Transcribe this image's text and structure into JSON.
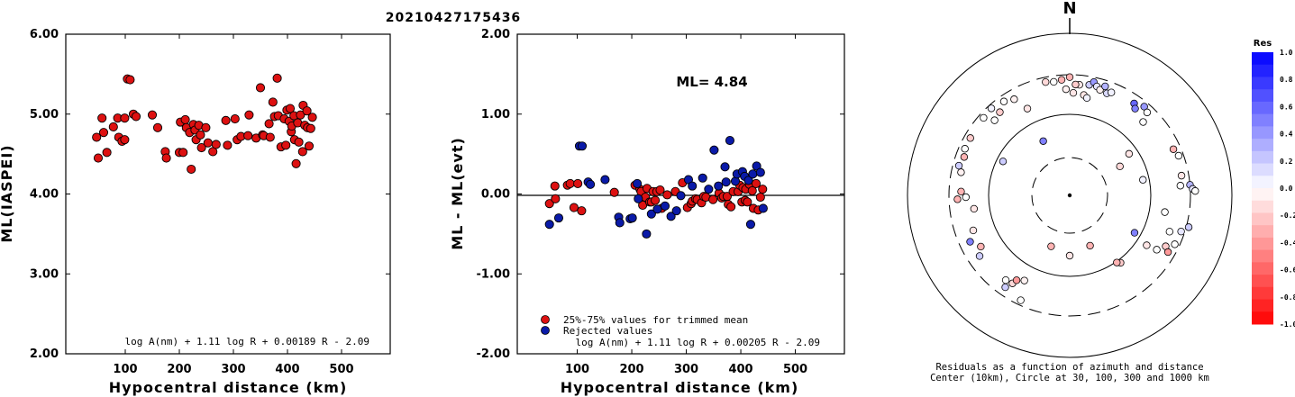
{
  "event_id": "20210427175436",
  "chart_data": [
    {
      "type": "scatter",
      "ylabel": "ML(IASPEI)",
      "xlabel": "Hypocentral distance (km)",
      "xlim": [
        -10,
        590
      ],
      "ylim": [
        2.0,
        6.0
      ],
      "xticks": [
        "100",
        "200",
        "300",
        "400",
        "500"
      ],
      "yticks": [
        "2.00",
        "3.00",
        "4.00",
        "5.00",
        "6.00"
      ],
      "formula": "log A(nm) + 1.11 log R + 0.00189 R - 2.09",
      "marker_color": "#dd1111",
      "series": [
        {
          "values": [
            [
              47,
              4.71
            ],
            [
              50,
              4.45
            ],
            [
              57,
              4.95
            ],
            [
              60,
              4.77
            ],
            [
              66,
              4.52
            ],
            [
              78,
              4.84
            ],
            [
              86,
              4.95
            ],
            [
              88,
              4.71
            ],
            [
              94,
              4.66
            ],
            [
              99,
              4.95
            ],
            [
              99,
              4.68
            ],
            [
              104,
              5.44
            ],
            [
              109,
              5.43
            ],
            [
              115,
              5.0
            ],
            [
              120,
              4.97
            ],
            [
              150,
              4.99
            ],
            [
              160,
              4.83
            ],
            [
              174,
              4.53
            ],
            [
              176,
              4.45
            ],
            [
              200,
              4.52
            ],
            [
              202,
              4.9
            ],
            [
              207,
              4.52
            ],
            [
              211,
              4.93
            ],
            [
              213,
              4.83
            ],
            [
              219,
              4.77
            ],
            [
              222,
              4.31
            ],
            [
              226,
              4.87
            ],
            [
              229,
              4.8
            ],
            [
              231,
              4.68
            ],
            [
              236,
              4.86
            ],
            [
              239,
              4.74
            ],
            [
              241,
              4.58
            ],
            [
              249,
              4.83
            ],
            [
              253,
              4.64
            ],
            [
              262,
              4.53
            ],
            [
              268,
              4.62
            ],
            [
              286,
              4.92
            ],
            [
              289,
              4.61
            ],
            [
              303,
              4.94
            ],
            [
              307,
              4.68
            ],
            [
              314,
              4.72
            ],
            [
              327,
              4.73
            ],
            [
              329,
              4.99
            ],
            [
              342,
              4.7
            ],
            [
              350,
              5.33
            ],
            [
              354,
              4.74
            ],
            [
              356,
              4.73
            ],
            [
              366,
              4.88
            ],
            [
              368,
              4.71
            ],
            [
              373,
              5.15
            ],
            [
              376,
              4.97
            ],
            [
              381,
              5.45
            ],
            [
              383,
              4.98
            ],
            [
              388,
              4.59
            ],
            [
              394,
              4.94
            ],
            [
              397,
              4.61
            ],
            [
              399,
              5.05
            ],
            [
              403,
              4.91
            ],
            [
              405,
              5.07
            ],
            [
              407,
              4.78
            ],
            [
              408,
              4.85
            ],
            [
              412,
              4.98
            ],
            [
              413,
              4.68
            ],
            [
              416,
              4.38
            ],
            [
              419,
              4.89
            ],
            [
              421,
              4.65
            ],
            [
              424,
              4.99
            ],
            [
              428,
              4.53
            ],
            [
              429,
              5.11
            ],
            [
              432,
              4.86
            ],
            [
              436,
              5.04
            ],
            [
              437,
              4.83
            ],
            [
              440,
              4.6
            ],
            [
              443,
              4.82
            ],
            [
              446,
              4.96
            ]
          ]
        }
      ]
    },
    {
      "type": "scatter",
      "ylabel": "ML - ML(evt)",
      "xlabel": "Hypocentral distance (km)",
      "xlim": [
        -10,
        590
      ],
      "ylim": [
        -2.0,
        2.0
      ],
      "xticks": [
        "100",
        "200",
        "300",
        "400",
        "500"
      ],
      "yticks": [
        "-2.00",
        "-1.00",
        "0.00",
        "1.00",
        "2.00"
      ],
      "annotation": "ML= 4.84",
      "formula": "log A(nm) + 1.11 log R + 0.00205 R - 2.09",
      "legend": [
        "25%-75% values for trimmed mean",
        "Rejected values"
      ],
      "series": [
        {
          "name": "25%-75% values for trimmed mean",
          "color": "#dd1111",
          "values": [
            [
              49,
              -0.12
            ],
            [
              59,
              0.1
            ],
            [
              60,
              -0.06
            ],
            [
              82,
              0.11
            ],
            [
              87,
              0.13
            ],
            [
              94,
              -0.17
            ],
            [
              101,
              0.13
            ],
            [
              108,
              -0.21
            ],
            [
              168,
              0.02
            ],
            [
              206,
              0.11
            ],
            [
              215,
              0.06
            ],
            [
              217,
              0.03
            ],
            [
              220,
              -0.14
            ],
            [
              225,
              -0.04
            ],
            [
              228,
              0.07
            ],
            [
              233,
              -0.1
            ],
            [
              236,
              -0.1
            ],
            [
              239,
              0.03
            ],
            [
              243,
              -0.08
            ],
            [
              246,
              0.03
            ],
            [
              252,
              0.05
            ],
            [
              255,
              -0.18
            ],
            [
              265,
              -0.01
            ],
            [
              280,
              0.03
            ],
            [
              293,
              0.14
            ],
            [
              302,
              -0.17
            ],
            [
              309,
              -0.12
            ],
            [
              311,
              -0.09
            ],
            [
              317,
              -0.06
            ],
            [
              320,
              -0.07
            ],
            [
              328,
              -0.11
            ],
            [
              332,
              -0.03
            ],
            [
              336,
              -0.04
            ],
            [
              349,
              -0.07
            ],
            [
              360,
              0.01
            ],
            [
              365,
              -0.05
            ],
            [
              368,
              -0.03
            ],
            [
              375,
              -0.03
            ],
            [
              377,
              -0.13
            ],
            [
              382,
              -0.16
            ],
            [
              386,
              0.03
            ],
            [
              395,
              0.03
            ],
            [
              398,
              0.11
            ],
            [
              402,
              -0.1
            ],
            [
              404,
              0.08
            ],
            [
              408,
              -0.08
            ],
            [
              409,
              0.06
            ],
            [
              412,
              -0.1
            ],
            [
              416,
              0.12
            ],
            [
              421,
              0.04
            ],
            [
              423,
              -0.18
            ],
            [
              428,
              0.13
            ],
            [
              432,
              -0.2
            ],
            [
              436,
              -0.04
            ],
            [
              440,
              0.06
            ]
          ]
        },
        {
          "name": "Rejected values",
          "color": "#0a1aa8",
          "values": [
            [
              49,
              -0.38
            ],
            [
              66,
              -0.3
            ],
            [
              104,
              0.6
            ],
            [
              109,
              0.6
            ],
            [
              120,
              0.15
            ],
            [
              124,
              0.12
            ],
            [
              151,
              0.18
            ],
            [
              176,
              -0.29
            ],
            [
              178,
              -0.36
            ],
            [
              197,
              -0.31
            ],
            [
              201,
              -0.3
            ],
            [
              210,
              0.13
            ],
            [
              212,
              -0.06
            ],
            [
              227,
              -0.5
            ],
            [
              236,
              -0.25
            ],
            [
              247,
              -0.19
            ],
            [
              261,
              -0.15
            ],
            [
              272,
              -0.28
            ],
            [
              282,
              -0.21
            ],
            [
              290,
              -0.02
            ],
            [
              304,
              0.18
            ],
            [
              311,
              0.1
            ],
            [
              330,
              0.2
            ],
            [
              341,
              0.06
            ],
            [
              351,
              0.55
            ],
            [
              359,
              0.1
            ],
            [
              371,
              0.34
            ],
            [
              373,
              0.15
            ],
            [
              380,
              0.67
            ],
            [
              390,
              0.16
            ],
            [
              393,
              0.25
            ],
            [
              403,
              0.28
            ],
            [
              407,
              0.22
            ],
            [
              414,
              0.17
            ],
            [
              418,
              -0.38
            ],
            [
              422,
              0.25
            ],
            [
              429,
              0.35
            ],
            [
              436,
              0.27
            ],
            [
              441,
              -0.18
            ]
          ]
        }
      ]
    },
    {
      "type": "polar-scatter",
      "north_label": "N",
      "caption_line1": "Residuals as a function of azimuth and distance",
      "caption_line2": "Center (10km), Circle at 30, 100, 300 and 1000 km",
      "colorbar_title": "Res",
      "colorbar_ticks": [
        "1.0",
        "0.8",
        "0.6",
        "0.4",
        "0.2",
        "0.0",
        "-0.2",
        "-0.4",
        "-0.6",
        "-0.8",
        "-1.0"
      ],
      "positive_color": "#0000ff",
      "negative_color": "#ff0000",
      "points": [
        {
          "az": 5,
          "r": 0.92,
          "res": -0.1
        },
        {
          "az": 10,
          "r": 0.93,
          "res": 0.2
        },
        {
          "az": 12,
          "r": 0.96,
          "res": 0.4
        },
        {
          "az": 14,
          "r": 0.93,
          "res": 0.1
        },
        {
          "az": 16,
          "r": 0.91,
          "res": -0.05
        },
        {
          "az": 18,
          "r": 0.95,
          "res": 0.3
        },
        {
          "az": 20,
          "r": 0.9,
          "res": 0.15
        },
        {
          "az": 22,
          "r": 0.92,
          "res": 0.05
        },
        {
          "az": 8,
          "r": 0.84,
          "res": -0.1
        },
        {
          "az": 10,
          "r": 0.82,
          "res": 0.05
        },
        {
          "az": 35,
          "r": 0.93,
          "res": 0.6
        },
        {
          "az": 37,
          "r": 0.9,
          "res": 0.5
        },
        {
          "az": 40,
          "r": 0.96,
          "res": 0.4
        },
        {
          "az": 43,
          "r": 0.94,
          "res": 0.0
        },
        {
          "az": 45,
          "r": 0.86,
          "res": 0.0
        },
        {
          "az": 55,
          "r": 0.6,
          "res": -0.1
        },
        {
          "az": 60,
          "r": 0.48,
          "res": -0.15
        },
        {
          "az": 66,
          "r": 0.94,
          "res": -0.3
        },
        {
          "az": 70,
          "r": 0.96,
          "res": 0.0
        },
        {
          "az": 80,
          "r": 0.94,
          "res": -0.1
        },
        {
          "az": 85,
          "r": 0.92,
          "res": 0.0
        },
        {
          "az": 85,
          "r": 1.0,
          "res": 0.3
        },
        {
          "az": 87,
          "r": 1.02,
          "res": 0.1
        },
        {
          "az": 88,
          "r": 1.04,
          "res": 0.0
        },
        {
          "az": 78,
          "r": 0.62,
          "res": 0.05
        },
        {
          "az": 100,
          "r": 0.8,
          "res": 0.0
        },
        {
          "az": 105,
          "r": 1.02,
          "res": 0.2
        },
        {
          "az": 108,
          "r": 0.97,
          "res": 0.1
        },
        {
          "az": 110,
          "r": 0.88,
          "res": 0.0
        },
        {
          "az": 115,
          "r": 0.96,
          "res": 0.0
        },
        {
          "az": 118,
          "r": 0.9,
          "res": -0.2
        },
        {
          "az": 120,
          "r": 0.94,
          "res": -0.4
        },
        {
          "az": 122,
          "r": 0.85,
          "res": 0.0
        },
        {
          "az": 123,
          "r": 0.76,
          "res": -0.1
        },
        {
          "az": 120,
          "r": 0.62,
          "res": 0.5
        },
        {
          "az": 143,
          "r": 0.7,
          "res": -0.2
        },
        {
          "az": 145,
          "r": 0.68,
          "res": -0.3
        },
        {
          "az": 158,
          "r": 0.45,
          "res": -0.3
        },
        {
          "az": 180,
          "r": 0.5,
          "res": -0.1
        },
        {
          "az": 200,
          "r": 0.45,
          "res": -0.3
        },
        {
          "az": 208,
          "r": 0.8,
          "res": -0.05
        },
        {
          "az": 205,
          "r": 0.96,
          "res": 0.0
        },
        {
          "az": 215,
          "r": 0.93,
          "res": 0.2
        },
        {
          "az": 213,
          "r": 0.87,
          "res": -0.15
        },
        {
          "az": 212,
          "r": 0.83,
          "res": -0.4
        },
        {
          "az": 217,
          "r": 0.88,
          "res": 0.0
        },
        {
          "az": 236,
          "r": 0.9,
          "res": 0.2
        },
        {
          "az": 240,
          "r": 0.85,
          "res": -0.3
        },
        {
          "az": 245,
          "r": 0.91,
          "res": 0.5
        },
        {
          "az": 250,
          "r": 0.85,
          "res": -0.1
        },
        {
          "az": 262,
          "r": 0.8,
          "res": -0.1
        },
        {
          "az": 268,
          "r": 0.93,
          "res": -0.3
        },
        {
          "az": 272,
          "r": 0.9,
          "res": -0.3
        },
        {
          "az": 269,
          "r": 0.86,
          "res": 0.0
        },
        {
          "az": 282,
          "r": 0.92,
          "res": -0.05
        },
        {
          "az": 285,
          "r": 0.95,
          "res": 0.2
        },
        {
          "az": 290,
          "r": 0.93,
          "res": -0.3
        },
        {
          "az": 294,
          "r": 0.95,
          "res": 0.0
        },
        {
          "az": 300,
          "r": 0.95,
          "res": -0.2
        },
        {
          "az": 297,
          "r": 0.62,
          "res": 0.2
        },
        {
          "az": 312,
          "r": 0.96,
          "res": 0.0
        },
        {
          "az": 318,
          "r": 0.97,
          "res": 0.05
        },
        {
          "az": 320,
          "r": 0.9,
          "res": -0.2
        },
        {
          "az": 315,
          "r": 0.88,
          "res": 0.0
        },
        {
          "az": 325,
          "r": 0.95,
          "res": 0.0
        },
        {
          "az": 330,
          "r": 0.92,
          "res": -0.05
        },
        {
          "az": 334,
          "r": 0.8,
          "res": -0.1
        },
        {
          "az": 334,
          "r": 0.5,
          "res": 0.5
        },
        {
          "az": 348,
          "r": 0.96,
          "res": -0.15
        },
        {
          "az": 352,
          "r": 0.95,
          "res": 0.0
        },
        {
          "az": 356,
          "r": 0.96,
          "res": -0.3
        },
        {
          "az": 358,
          "r": 0.88,
          "res": -0.05
        },
        {
          "az": 0,
          "r": 0.98,
          "res": -0.3
        },
        {
          "az": 3,
          "r": 0.92,
          "res": -0.2
        },
        {
          "az": 2,
          "r": 0.85,
          "res": -0.1
        }
      ]
    }
  ]
}
